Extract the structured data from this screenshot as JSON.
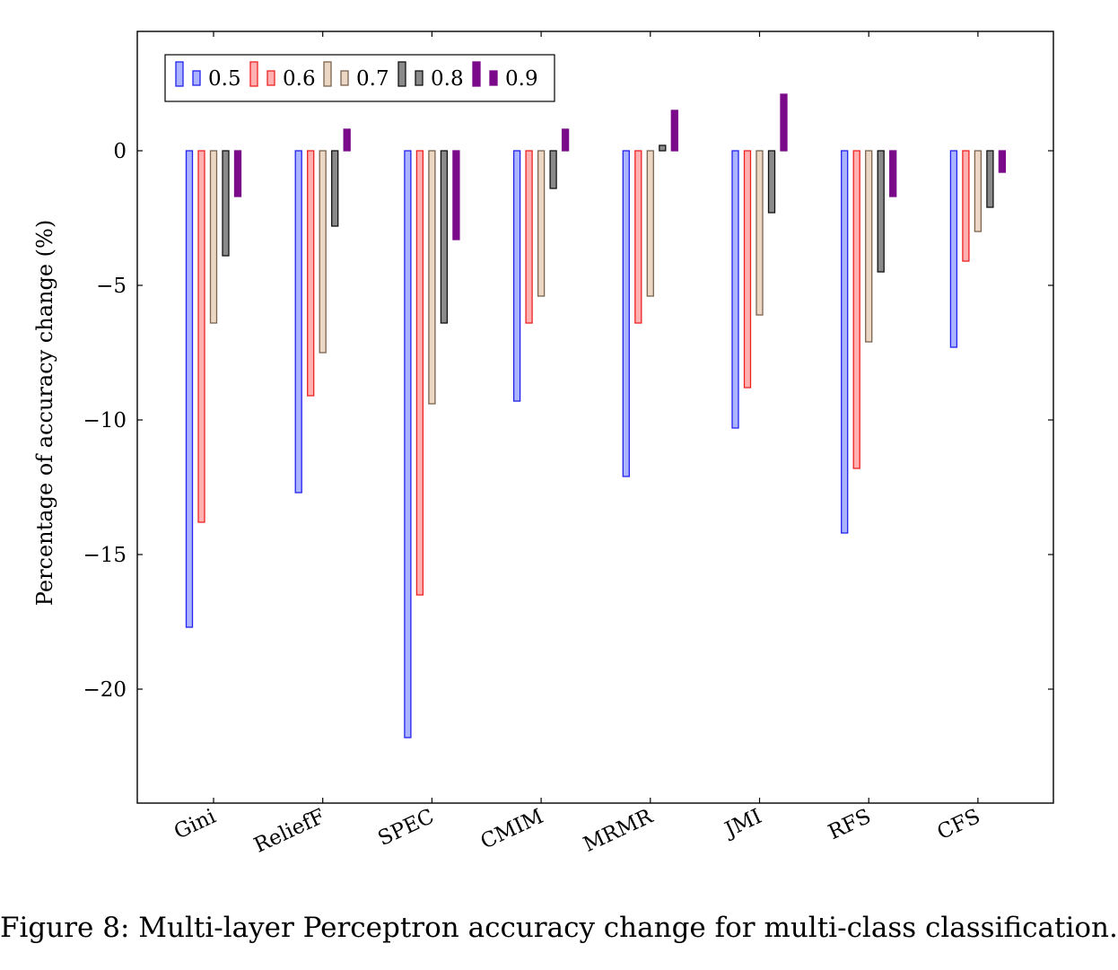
{
  "caption": "Figure 8: Multi-layer Perceptron accuracy change for multi-class classification.",
  "chart_data": {
    "type": "bar",
    "ylabel": "Percentage of accuracy change (%)",
    "xlabel": "",
    "ylim": [
      -24,
      4.5
    ],
    "yticks": [
      0,
      -5,
      -10,
      -15,
      -20
    ],
    "ytick_labels": [
      "0",
      "−5",
      "−10",
      "−15",
      "−20"
    ],
    "grid": false,
    "legend_position": "top-left",
    "categories": [
      "Gini",
      "ReliefF",
      "SPEC",
      "CMIM",
      "MRMR",
      "JMI",
      "RFS",
      "CFS"
    ],
    "series": [
      {
        "name": "0.5",
        "fill": "#aab4ff",
        "stroke": "#2222ee",
        "values": [
          -17.7,
          -12.7,
          -21.8,
          -9.3,
          -12.1,
          -10.3,
          -14.2,
          -7.3
        ]
      },
      {
        "name": "0.6",
        "fill": "#ffb0b0",
        "stroke": "#ee2222",
        "values": [
          -13.8,
          -9.1,
          -16.5,
          -6.4,
          -6.4,
          -8.8,
          -11.8,
          -4.1
        ]
      },
      {
        "name": "0.7",
        "fill": "#ecd7c4",
        "stroke": "#7a6450",
        "values": [
          -6.4,
          -7.5,
          -9.4,
          -5.4,
          -5.4,
          -6.1,
          -7.1,
          -3.0
        ]
      },
      {
        "name": "0.8",
        "fill": "#8a8a8a",
        "stroke": "#111111",
        "values": [
          -3.9,
          -2.8,
          -6.4,
          -1.4,
          0.2,
          -2.3,
          -4.5,
          -2.1
        ]
      },
      {
        "name": "0.9",
        "fill": "#7a0a8a",
        "stroke": "#7a0a8a",
        "values": [
          -1.7,
          0.8,
          -3.3,
          0.8,
          1.5,
          2.1,
          -1.7,
          -0.8
        ]
      }
    ]
  }
}
